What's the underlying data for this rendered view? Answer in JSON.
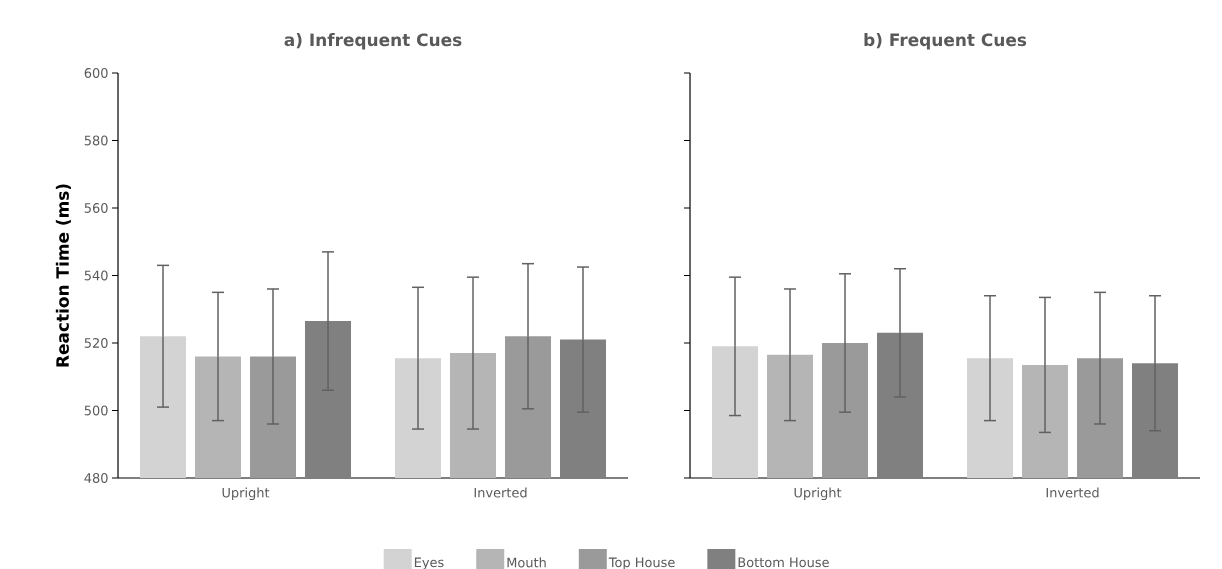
{
  "chart_data": [
    {
      "type": "bar",
      "title": "a) Infrequent Cues",
      "ylabel": "Reaction Time (ms)",
      "categories": [
        "Upright",
        "Inverted"
      ],
      "ylim": [
        480,
        600
      ],
      "yticks": [
        480,
        500,
        520,
        540,
        560,
        580,
        600
      ],
      "legend": "bottom",
      "series": [
        {
          "name": "Eyes",
          "color": "#d3d3d3",
          "values": [
            522,
            515.5
          ],
          "errors": [
            21,
            21
          ]
        },
        {
          "name": "Mouth",
          "color": "#b5b5b5",
          "values": [
            516,
            517
          ],
          "errors": [
            19,
            22.5
          ]
        },
        {
          "name": "Top House",
          "color": "#9a9a9a",
          "values": [
            516,
            522
          ],
          "errors": [
            20,
            21.5
          ]
        },
        {
          "name": "Bottom House",
          "color": "#808080",
          "values": [
            526.5,
            521
          ],
          "errors": [
            20.5,
            21.5
          ]
        }
      ]
    },
    {
      "type": "bar",
      "title": "b) Frequent Cues",
      "categories": [
        "Upright",
        "Inverted"
      ],
      "ylim": [
        480,
        600
      ],
      "yticks": [
        480,
        500,
        520,
        540,
        560,
        580,
        600
      ],
      "tick_labels": "x",
      "series": [
        {
          "color": "#d3d3d3",
          "values": [
            519,
            515.5
          ],
          "errors": [
            20.5,
            18.5
          ]
        },
        {
          "color": "#b5b5b5",
          "values": [
            516.5,
            513.5
          ],
          "errors": [
            19.5,
            20
          ]
        },
        {
          "color": "#9a9a9a",
          "values": [
            520,
            515.5
          ],
          "errors": [
            20.5,
            19.5
          ]
        },
        {
          "color": "#808080",
          "values": [
            523,
            514
          ],
          "errors": [
            19,
            20
          ]
        }
      ]
    }
  ]
}
